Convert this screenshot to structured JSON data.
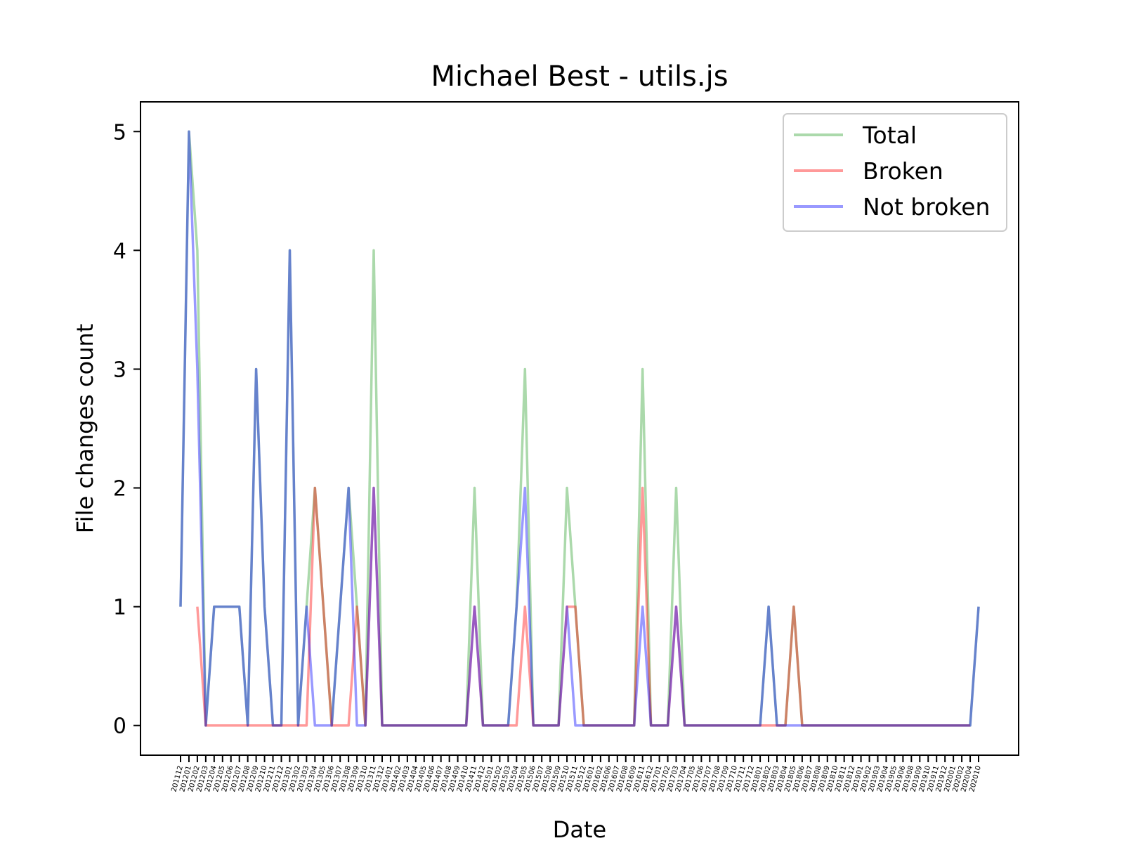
{
  "chart_data": {
    "type": "line",
    "title": "Michael Best - utils.js",
    "xlabel": "Date",
    "ylabel": "File changes count",
    "ylim": [
      -0.25,
      5.25
    ],
    "yticks": [
      0,
      1,
      2,
      3,
      4,
      5
    ],
    "grid": false,
    "legend_position": "top-right",
    "x": [
      "201112",
      "201201",
      "201202",
      "201203",
      "201204",
      "201205",
      "201206",
      "201207",
      "201208",
      "201209",
      "201210",
      "201211",
      "201212",
      "201301",
      "201302",
      "201303",
      "201304",
      "201305",
      "201306",
      "201307",
      "201308",
      "201309",
      "201310",
      "201311",
      "201312",
      "201401",
      "201402",
      "201403",
      "201404",
      "201405",
      "201406",
      "201407",
      "201408",
      "201409",
      "201410",
      "201411",
      "201412",
      "201501",
      "201502",
      "201503",
      "201504",
      "201505",
      "201506",
      "201507",
      "201508",
      "201509",
      "201510",
      "201511",
      "201512",
      "201601",
      "201602",
      "201606",
      "201607",
      "201608",
      "201609",
      "201611",
      "201612",
      "201701",
      "201702",
      "201703",
      "201704",
      "201705",
      "201706",
      "201707",
      "201708",
      "201709",
      "201710",
      "201711",
      "201712",
      "201801",
      "201802",
      "201803",
      "201804",
      "201805",
      "201806",
      "201807",
      "201808",
      "201809",
      "201810",
      "201811",
      "201812",
      "201901",
      "201902",
      "201903",
      "201904",
      "201905",
      "201906",
      "201908",
      "201909",
      "201910",
      "201911",
      "201912",
      "202001",
      "202002",
      "202004",
      "202010"
    ],
    "series": [
      {
        "name": "Total",
        "color": "#2ca02c",
        "values": [
          1,
          5,
          4,
          0,
          1,
          1,
          1,
          1,
          0,
          3,
          1,
          0,
          0,
          4,
          0,
          1,
          2,
          1,
          0,
          1,
          2,
          1,
          0,
          4,
          0,
          0,
          0,
          0,
          0,
          0,
          0,
          0,
          0,
          0,
          0,
          2,
          0,
          0,
          0,
          0,
          1,
          3,
          0,
          0,
          0,
          0,
          2,
          1,
          0,
          0,
          0,
          0,
          0,
          0,
          0,
          3,
          0,
          0,
          0,
          2,
          0,
          0,
          0,
          0,
          0,
          0,
          0,
          0,
          0,
          0,
          1,
          0,
          0,
          1,
          0,
          0,
          0,
          0,
          0,
          0,
          0,
          0,
          0,
          0,
          0,
          0,
          0,
          0,
          0,
          0,
          0,
          0,
          0,
          0,
          0,
          1
        ]
      },
      {
        "name": "Broken",
        "color": "#ff0000",
        "values": [
          null,
          null,
          1,
          0,
          0,
          0,
          0,
          0,
          0,
          0,
          0,
          0,
          0,
          0,
          0,
          0,
          2,
          1,
          0,
          0,
          0,
          1,
          0,
          2,
          0,
          0,
          0,
          0,
          0,
          0,
          0,
          0,
          0,
          0,
          0,
          1,
          0,
          0,
          0,
          0,
          0,
          1,
          0,
          0,
          0,
          0,
          1,
          1,
          0,
          0,
          0,
          0,
          0,
          0,
          0,
          2,
          0,
          0,
          0,
          1,
          0,
          0,
          0,
          0,
          0,
          0,
          0,
          0,
          0,
          0,
          0,
          0,
          0,
          1,
          0,
          0,
          0,
          0,
          0,
          0,
          0,
          0,
          0,
          0,
          0,
          0,
          0,
          0,
          0,
          0,
          0,
          0,
          0,
          0,
          0,
          null
        ]
      },
      {
        "name": "Not broken",
        "color": "#0000ff",
        "values": [
          1,
          5,
          3,
          0,
          1,
          1,
          1,
          1,
          0,
          3,
          1,
          0,
          0,
          4,
          0,
          1,
          0,
          0,
          0,
          1,
          2,
          0,
          0,
          2,
          0,
          0,
          0,
          0,
          0,
          0,
          0,
          0,
          0,
          0,
          0,
          1,
          0,
          0,
          0,
          0,
          1,
          2,
          0,
          0,
          0,
          0,
          1,
          0,
          0,
          0,
          0,
          0,
          0,
          0,
          0,
          1,
          0,
          0,
          0,
          1,
          0,
          0,
          0,
          0,
          0,
          0,
          0,
          0,
          0,
          0,
          1,
          0,
          0,
          0,
          0,
          0,
          0,
          0,
          0,
          0,
          0,
          0,
          0,
          0,
          0,
          0,
          0,
          0,
          0,
          0,
          0,
          0,
          0,
          0,
          0,
          1
        ]
      }
    ]
  }
}
